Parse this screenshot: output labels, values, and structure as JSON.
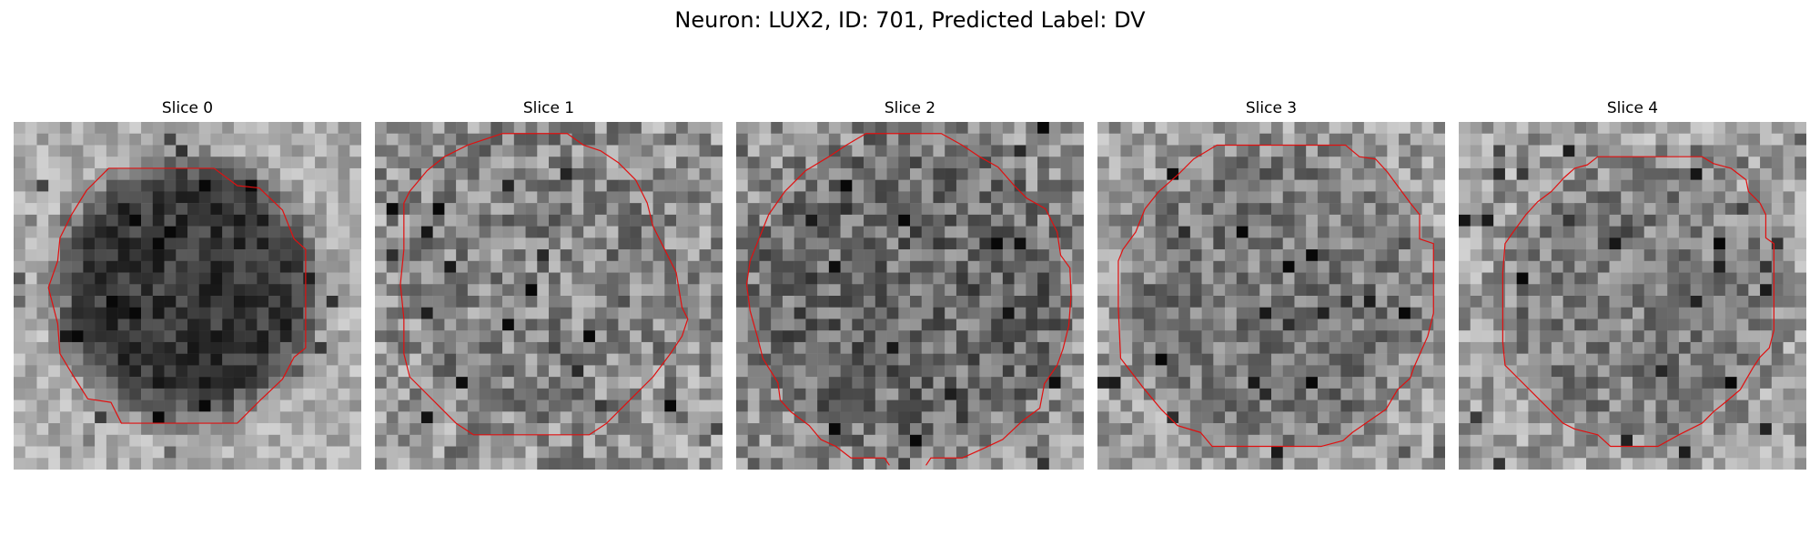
{
  "figure": {
    "title": "Neuron: LUX2, ID: 701, Predicted Label: DV"
  },
  "slices": [
    {
      "label": "Slice 0"
    },
    {
      "label": "Slice 1"
    },
    {
      "label": "Slice 2"
    },
    {
      "label": "Slice 3"
    },
    {
      "label": "Slice 4"
    }
  ],
  "colors": {
    "contour": "#e01010",
    "colormap": "gray"
  }
}
